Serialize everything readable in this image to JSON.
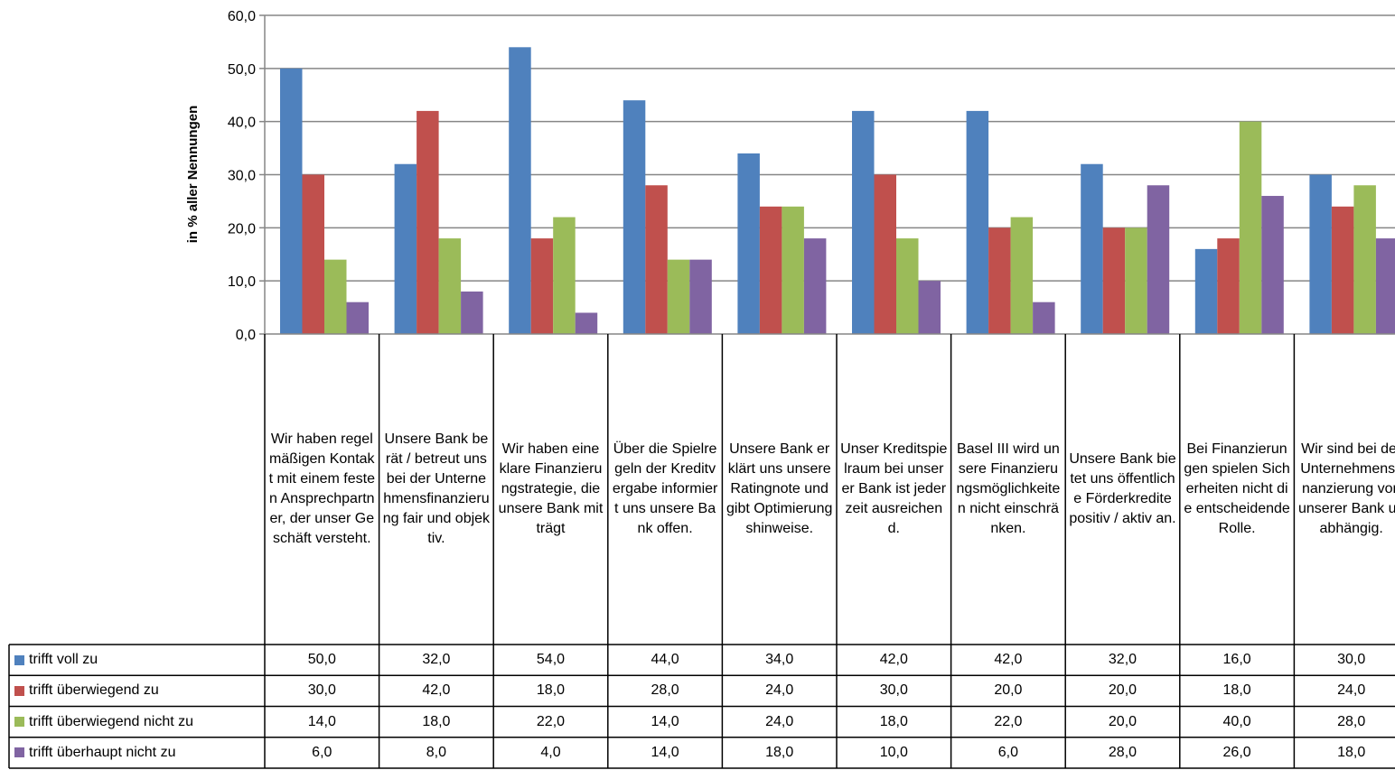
{
  "chart_data": {
    "type": "bar",
    "title": "",
    "xlabel": "",
    "ylabel": "in % aller Nennungen",
    "ylim": [
      0,
      60
    ],
    "yticks": [
      "0,0",
      "10,0",
      "20,0",
      "30,0",
      "40,0",
      "50,0",
      "60,0"
    ],
    "grid": true,
    "legend": "bottom-table",
    "categories": [
      "Wir haben regelmäßigen Kontakt mit einem festen Ansprechpartner, der unser Geschäft versteht.",
      "Unsere Bank berät / betreut uns bei der Unternehmensfinanzierung fair und objektiv.",
      "Wir haben eine klare Finanzierungstrategie, die unsere Bank mitträgt",
      "Über die Spielregeln der Kreditvergabe informiert uns unsere Bank offen.",
      "Unsere Bank erklärt uns unsere Ratingnote und gibt Optimierungshinweise.",
      "Unser Kreditspielraum bei unserer Bank ist jederzeit ausreichend.",
      "Basel III wird unsere Finanzierungsmöglichkeiten nicht einschränken.",
      "Unsere Bank bietet uns öffentliche Förderkredite positiv / aktiv an.",
      "Bei Finanzierungen spielen Sicherheiten nicht die entscheidende Rolle.",
      "Wir sind bei der Unternehmensfinanzierung von unserer Bank unabhängig."
    ],
    "series": [
      {
        "name": "trifft voll zu",
        "color": "#4F81BD",
        "values": [
          50,
          32,
          54,
          44,
          34,
          42,
          42,
          32,
          16,
          30
        ],
        "labels": [
          "50,0",
          "32,0",
          "54,0",
          "44,0",
          "34,0",
          "42,0",
          "42,0",
          "32,0",
          "16,0",
          "30,0"
        ]
      },
      {
        "name": "trifft überwiegend zu",
        "color": "#C0504D",
        "values": [
          30,
          42,
          18,
          28,
          24,
          30,
          20,
          20,
          18,
          24
        ],
        "labels": [
          "30,0",
          "42,0",
          "18,0",
          "28,0",
          "24,0",
          "30,0",
          "20,0",
          "20,0",
          "18,0",
          "24,0"
        ]
      },
      {
        "name": "trifft überwiegend nicht zu",
        "color": "#9BBB59",
        "values": [
          14,
          18,
          22,
          14,
          24,
          18,
          22,
          20,
          40,
          28
        ],
        "labels": [
          "14,0",
          "18,0",
          "22,0",
          "14,0",
          "24,0",
          "18,0",
          "22,0",
          "20,0",
          "40,0",
          "28,0"
        ]
      },
      {
        "name": "trifft überhaupt nicht zu",
        "color": "#8064A2",
        "values": [
          6,
          8,
          4,
          14,
          18,
          10,
          6,
          28,
          26,
          18
        ],
        "labels": [
          "6,0",
          "8,0",
          "4,0",
          "14,0",
          "18,0",
          "10,0",
          "6,0",
          "28,0",
          "26,0",
          "18,0"
        ]
      }
    ]
  }
}
